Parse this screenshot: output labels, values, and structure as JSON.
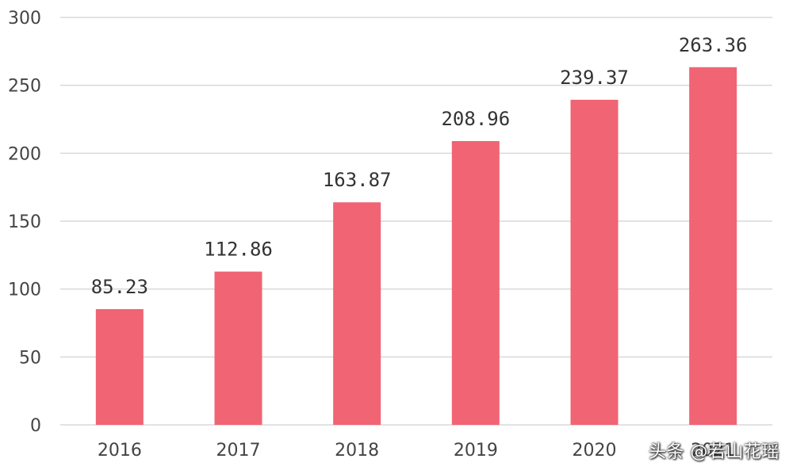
{
  "chart_data": {
    "type": "bar",
    "title": "",
    "xlabel": "",
    "ylabel": "",
    "categories": [
      "2016",
      "2017",
      "2018",
      "2019",
      "2020",
      "2021"
    ],
    "values": [
      85.23,
      112.86,
      163.87,
      208.96,
      239.37,
      263.36
    ],
    "data_labels": [
      "85.23",
      "112.86",
      "163.87",
      "208.96",
      "239.37",
      "263.36"
    ],
    "ylim": [
      0,
      300
    ],
    "yticks": [
      0,
      50,
      100,
      150,
      200,
      250,
      300
    ],
    "grid": true,
    "legend": "none",
    "bar_color": "#f06473",
    "grid_color": "#d9d9d9"
  },
  "watermark": "头条 @若山花瑶"
}
